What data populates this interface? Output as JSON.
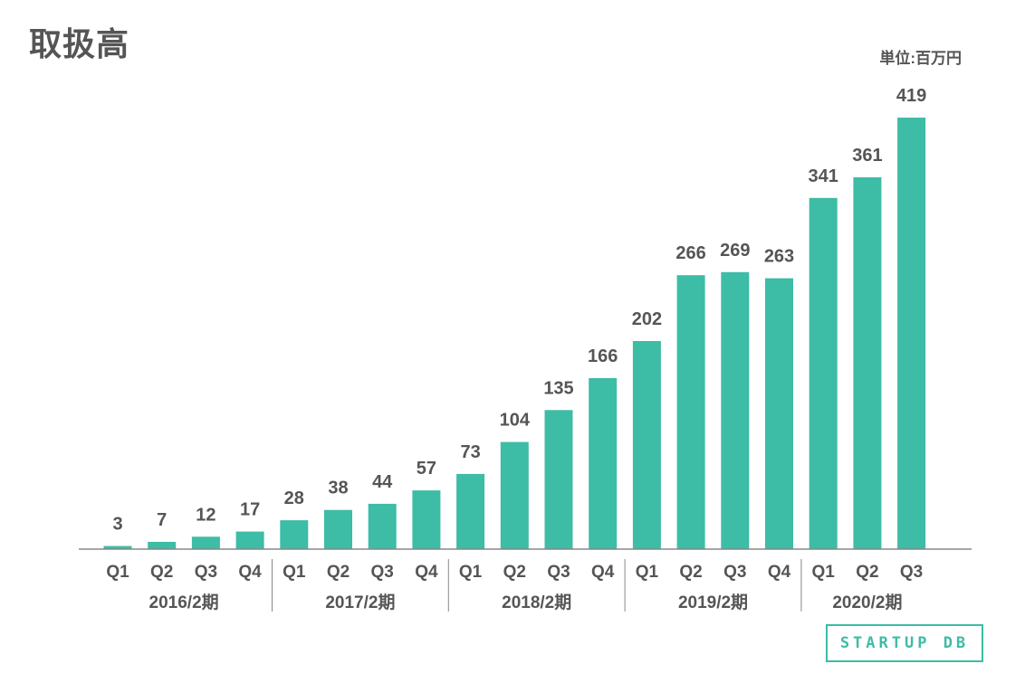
{
  "header": {
    "title": "取扱高",
    "unit": "単位:百万円"
  },
  "logo": {
    "text": "STARTUP DB"
  },
  "colors": {
    "bar": "#3dbca6",
    "text": "#555555",
    "axis": "#888888"
  },
  "chart_data": {
    "type": "bar",
    "title": "取扱高",
    "unit": "単位:百万円",
    "categories": [
      "Q1",
      "Q2",
      "Q3",
      "Q4",
      "Q1",
      "Q2",
      "Q3",
      "Q4",
      "Q1",
      "Q2",
      "Q3",
      "Q4",
      "Q1",
      "Q2",
      "Q3",
      "Q4",
      "Q1",
      "Q2",
      "Q3"
    ],
    "groups": [
      {
        "label": "2016/2期",
        "count": 4
      },
      {
        "label": "2017/2期",
        "count": 4
      },
      {
        "label": "2018/2期",
        "count": 4
      },
      {
        "label": "2019/2期",
        "count": 4
      },
      {
        "label": "2020/2期",
        "count": 3
      }
    ],
    "values": [
      3,
      7,
      12,
      17,
      28,
      38,
      44,
      57,
      73,
      104,
      135,
      166,
      202,
      266,
      269,
      263,
      341,
      361,
      419
    ],
    "ylim": [
      0,
      419
    ],
    "grid": false,
    "legend": "none"
  }
}
